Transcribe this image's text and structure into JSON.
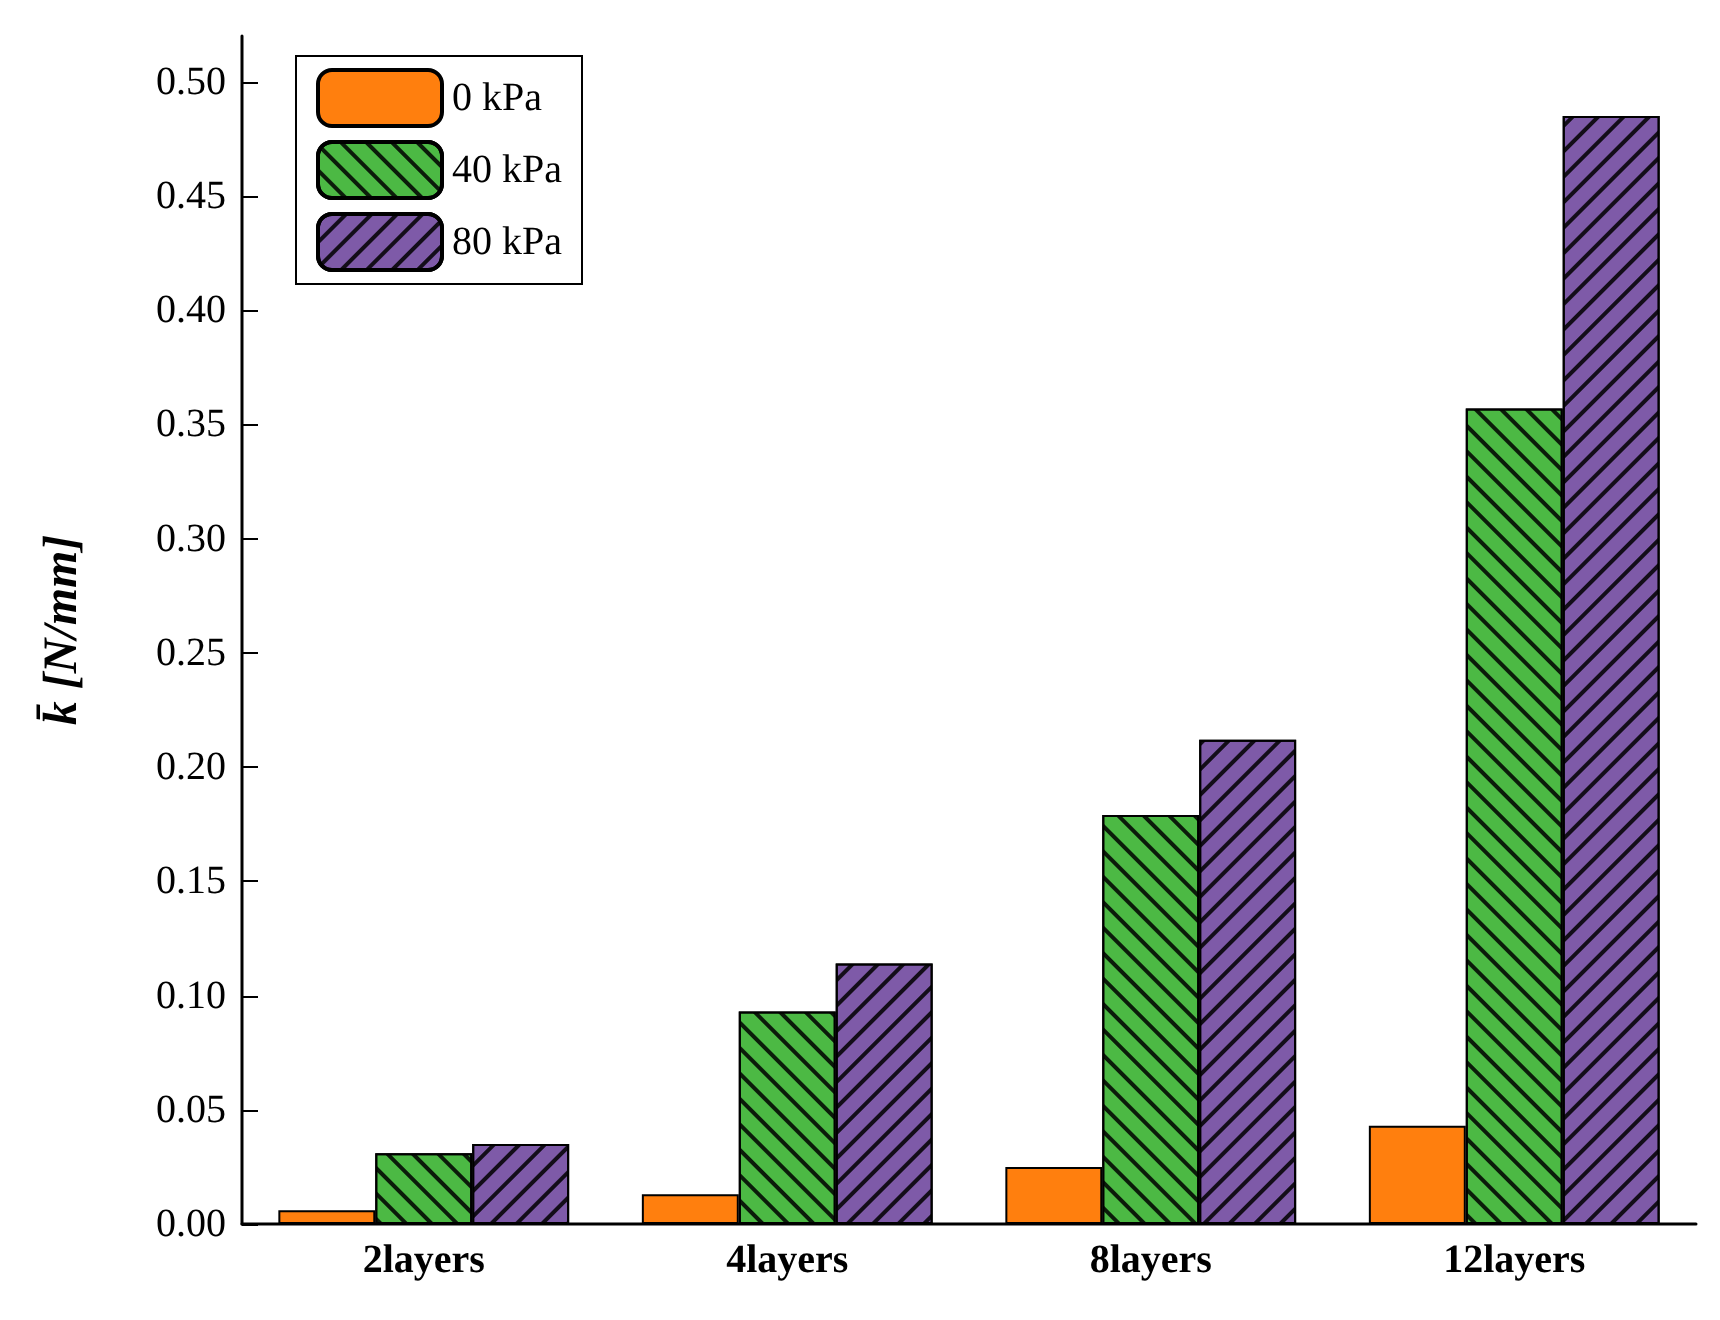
{
  "chart_data": {
    "type": "bar",
    "ylabel": "k̄ [N/mm]",
    "categories": [
      "2layers",
      "4layers",
      "8layers",
      "12layers"
    ],
    "series": [
      {
        "name": "0 kPa",
        "color": "#ff7f0e",
        "values": [
          0.006,
          0.013,
          0.025,
          0.043
        ]
      },
      {
        "name": "40 kPa",
        "color": "#4cb944",
        "values": [
          0.031,
          0.093,
          0.179,
          0.357
        ]
      },
      {
        "name": "80 kPa",
        "color": "#7e5aa8",
        "values": [
          0.035,
          0.114,
          0.212,
          0.485
        ]
      }
    ],
    "ylim": [
      0,
      0.52
    ],
    "yticks": [
      {
        "value": 0,
        "label": "0.00"
      },
      {
        "value": 0.05,
        "label": "0.05"
      },
      {
        "value": 0.1,
        "label": "0.10"
      },
      {
        "value": 0.15,
        "label": "0.15"
      },
      {
        "value": 0.2,
        "label": "0.20"
      },
      {
        "value": 0.25,
        "label": "0.25"
      },
      {
        "value": 0.3,
        "label": "0.30"
      },
      {
        "value": 0.35,
        "label": "0.35"
      },
      {
        "value": 0.4,
        "label": "0.40"
      },
      {
        "value": 0.45,
        "label": "0.45"
      },
      {
        "value": 0.5,
        "label": "0.50"
      }
    ],
    "grid": false,
    "legend": "top left"
  }
}
